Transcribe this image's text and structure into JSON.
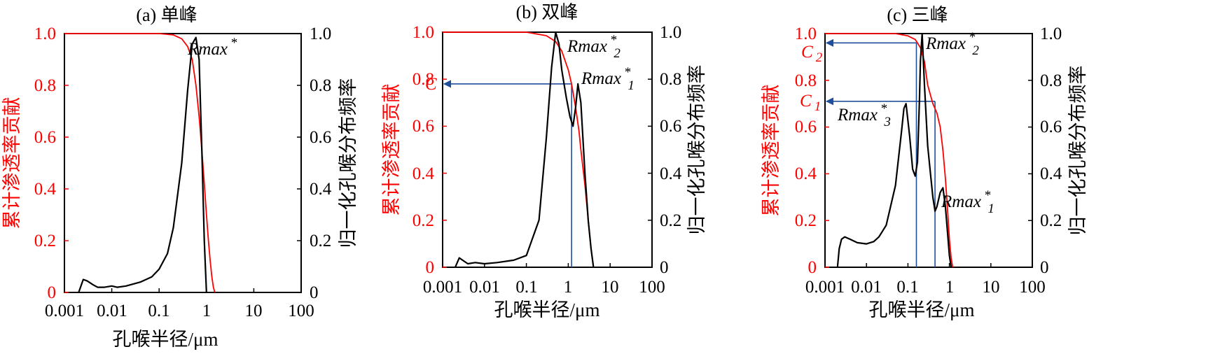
{
  "colors": {
    "cumulative": "#ff0000",
    "frequency": "#000000",
    "guide": "#1f4e9a"
  },
  "panels": [
    {
      "title": "(a) 单峰",
      "xlabel": "孔喉半径/μm",
      "ylabel_left": "累计渗透率贡献",
      "ylabel_right": "归一化孔喉分布频率",
      "xticks": [
        "0.001",
        "0.01",
        "0.1",
        "1",
        "10",
        "100"
      ],
      "yticks_left": [
        "0",
        "0.2",
        "0.4",
        "0.6",
        "0.8",
        "1.0"
      ],
      "yticks_right": [
        "0",
        "0.2",
        "0.4",
        "0.6",
        "0.8",
        "1.0"
      ],
      "annotations": [
        {
          "text": "Rmax",
          "sup": "*",
          "sub": ""
        }
      ],
      "guides": []
    },
    {
      "title": "(b) 双峰",
      "xlabel": "孔喉半径/μm",
      "ylabel_left": "累计渗透率贡献",
      "ylabel_right": "归一化孔喉分布频率",
      "xticks": [
        "0.001",
        "0.01",
        "0.1",
        "1",
        "10",
        "100"
      ],
      "yticks_left": [
        "0",
        "0.2",
        "0.4",
        "0.6",
        "0.8",
        "1.0"
      ],
      "yticks_right": [
        "0",
        "0.2",
        "0.4",
        "0.6",
        "0.8",
        "1.0"
      ],
      "annotations": [
        {
          "text": "Rmax",
          "sup": "*",
          "sub": "2"
        },
        {
          "text": "Rmax",
          "sup": "*",
          "sub": "1"
        }
      ],
      "guides": [
        {
          "label": "C",
          "sub": "",
          "x": 1.2,
          "y": 0.78
        }
      ]
    },
    {
      "title": "(c) 三峰",
      "xlabel": "孔喉半径/μm",
      "ylabel_left": "累计渗透率贡献",
      "ylabel_right": "归一化孔喉分布频率",
      "xticks": [
        "0.001",
        "0.01",
        "0.1",
        "1",
        "10",
        "100"
      ],
      "yticks_left": [
        "0",
        "0.2",
        "0.4",
        "0.6",
        "0.8",
        "1.0"
      ],
      "yticks_right": [
        "0",
        "0.2",
        "0.4",
        "0.6",
        "0.8",
        "1.0"
      ],
      "annotations": [
        {
          "text": "Rmax",
          "sup": "*",
          "sub": "2"
        },
        {
          "text": "Rmax",
          "sup": "*",
          "sub": "3"
        },
        {
          "text": "Rmax",
          "sup": "*",
          "sub": "1"
        }
      ],
      "guides": [
        {
          "label": "C",
          "sub": "2",
          "x": 0.16,
          "y": 0.96
        },
        {
          "label": "C",
          "sub": "1",
          "x": 0.45,
          "y": 0.71
        }
      ]
    }
  ],
  "chart_data": [
    {
      "type": "line",
      "title": "(a) 单峰",
      "xlabel": "孔喉半径/μm",
      "ylabel": "累计渗透率贡献",
      "y2label": "归一化孔喉分布频率",
      "xscale": "log",
      "xlim": [
        0.001,
        100
      ],
      "ylim": [
        0,
        1.0
      ],
      "y2lim": [
        0,
        1.0
      ],
      "grid": false,
      "series": [
        {
          "axis": "left",
          "color": "#ff0000",
          "x": [
            0.001,
            0.01,
            0.1,
            0.2,
            0.3,
            0.4,
            0.5,
            0.6,
            0.7,
            0.8,
            0.9,
            1.0,
            1.1,
            1.2,
            1.3,
            1.4,
            1.5
          ],
          "y": [
            1.0,
            1.0,
            1.0,
            0.995,
            0.98,
            0.95,
            0.9,
            0.8,
            0.68,
            0.55,
            0.42,
            0.3,
            0.2,
            0.12,
            0.06,
            0.02,
            0.0
          ]
        },
        {
          "axis": "right",
          "color": "#000000",
          "x": [
            0.002,
            0.0025,
            0.003,
            0.004,
            0.005,
            0.007,
            0.01,
            0.013,
            0.02,
            0.04,
            0.07,
            0.1,
            0.15,
            0.2,
            0.3,
            0.4,
            0.5,
            0.6,
            0.7,
            0.8,
            0.9,
            1.0
          ],
          "y": [
            0.0,
            0.05,
            0.045,
            0.03,
            0.02,
            0.02,
            0.025,
            0.02,
            0.025,
            0.04,
            0.06,
            0.09,
            0.15,
            0.25,
            0.5,
            0.78,
            0.96,
            0.985,
            0.9,
            0.55,
            0.2,
            0.0
          ]
        }
      ]
    },
    {
      "type": "line",
      "title": "(b) 双峰",
      "xlabel": "孔喉半径/μm",
      "ylabel": "累计渗透率贡献",
      "y2label": "归一化孔喉分布频率",
      "xscale": "log",
      "xlim": [
        0.001,
        100
      ],
      "ylim": [
        0,
        1.0
      ],
      "y2lim": [
        0,
        1.0
      ],
      "grid": false,
      "series": [
        {
          "axis": "left",
          "color": "#ff0000",
          "x": [
            0.001,
            0.1,
            0.3,
            0.5,
            0.7,
            1.0,
            1.2,
            1.5,
            1.8,
            2.0,
            2.5,
            3.0,
            3.5,
            4.0
          ],
          "y": [
            1.0,
            1.0,
            0.985,
            0.96,
            0.92,
            0.84,
            0.78,
            0.68,
            0.58,
            0.5,
            0.35,
            0.2,
            0.08,
            0.0
          ]
        },
        {
          "axis": "right",
          "color": "#000000",
          "x": [
            0.002,
            0.0025,
            0.003,
            0.004,
            0.006,
            0.01,
            0.02,
            0.05,
            0.1,
            0.2,
            0.3,
            0.4,
            0.5,
            0.6,
            0.7,
            0.9,
            1.1,
            1.3,
            1.5,
            1.7,
            2.0,
            2.5,
            3.0,
            3.5,
            4.0
          ],
          "y": [
            0.0,
            0.04,
            0.03,
            0.015,
            0.02,
            0.015,
            0.02,
            0.03,
            0.05,
            0.2,
            0.55,
            0.85,
            1.0,
            0.95,
            0.84,
            0.72,
            0.64,
            0.6,
            0.68,
            0.78,
            0.7,
            0.4,
            0.2,
            0.08,
            0.0
          ]
        }
      ]
    },
    {
      "type": "line",
      "title": "(c) 三峰",
      "xlabel": "孔喉半径/μm",
      "ylabel": "累计渗透率贡献",
      "y2label": "归一化孔喉分布频率",
      "xscale": "log",
      "xlim": [
        0.001,
        100
      ],
      "ylim": [
        0,
        1.0
      ],
      "y2lim": [
        0,
        1.0
      ],
      "grid": false,
      "series": [
        {
          "axis": "left",
          "color": "#ff0000",
          "x": [
            0.001,
            0.05,
            0.1,
            0.15,
            0.2,
            0.25,
            0.3,
            0.4,
            0.5,
            0.6,
            0.7,
            0.8,
            0.9,
            1.0,
            1.1,
            1.2
          ],
          "y": [
            1.0,
            1.0,
            0.99,
            0.975,
            0.94,
            0.88,
            0.78,
            0.7,
            0.66,
            0.6,
            0.5,
            0.38,
            0.25,
            0.12,
            0.04,
            0.0
          ]
        },
        {
          "axis": "right",
          "color": "#000000",
          "x": [
            0.002,
            0.0022,
            0.0025,
            0.003,
            0.004,
            0.006,
            0.01,
            0.015,
            0.02,
            0.03,
            0.05,
            0.07,
            0.08,
            0.09,
            0.11,
            0.13,
            0.15,
            0.17,
            0.19,
            0.2,
            0.22,
            0.25,
            0.3,
            0.35,
            0.4,
            0.45,
            0.5,
            0.6,
            0.7,
            0.8,
            0.9,
            1.0,
            1.1
          ],
          "y": [
            0.0,
            0.08,
            0.12,
            0.13,
            0.12,
            0.105,
            0.1,
            0.11,
            0.13,
            0.18,
            0.35,
            0.58,
            0.68,
            0.7,
            0.56,
            0.42,
            0.39,
            0.45,
            0.72,
            0.88,
            1.0,
            0.78,
            0.52,
            0.4,
            0.3,
            0.24,
            0.26,
            0.32,
            0.34,
            0.26,
            0.15,
            0.05,
            0.0
          ]
        }
      ]
    }
  ]
}
